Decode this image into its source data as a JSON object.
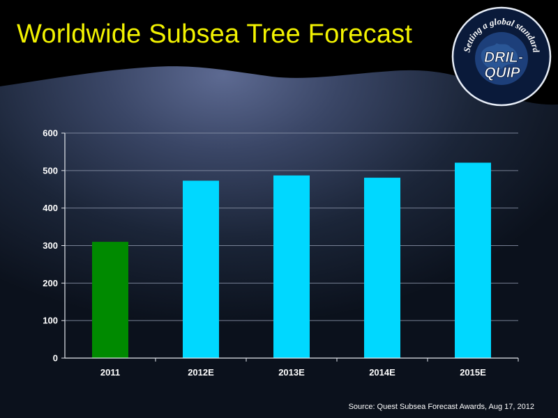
{
  "slide": {
    "title": "Worldwide Subsea Tree Forecast",
    "source": "Source: Quest Subsea Forecast Awards, Aug 17, 2012"
  },
  "logo": {
    "tagline": "Setting a global standard",
    "brand_line1": "DRIL-",
    "brand_line2": "QUIP"
  },
  "colors": {
    "title": "#f2f200",
    "actual_bar": "#008a00",
    "forecast_bar": "#00d8ff",
    "header_band": "#000000"
  },
  "chart_data": {
    "type": "bar",
    "categories": [
      "2011",
      "2012E",
      "2013E",
      "2014E",
      "2015E"
    ],
    "values": [
      310,
      473,
      487,
      481,
      521
    ],
    "bar_colors": [
      "#008a00",
      "#00d8ff",
      "#00d8ff",
      "#00d8ff",
      "#00d8ff"
    ],
    "title": "",
    "xlabel": "",
    "ylabel": "",
    "ylim": [
      0,
      600
    ],
    "yticks": [
      0,
      100,
      200,
      300,
      400,
      500,
      600
    ],
    "grid": true,
    "legend": "none"
  }
}
